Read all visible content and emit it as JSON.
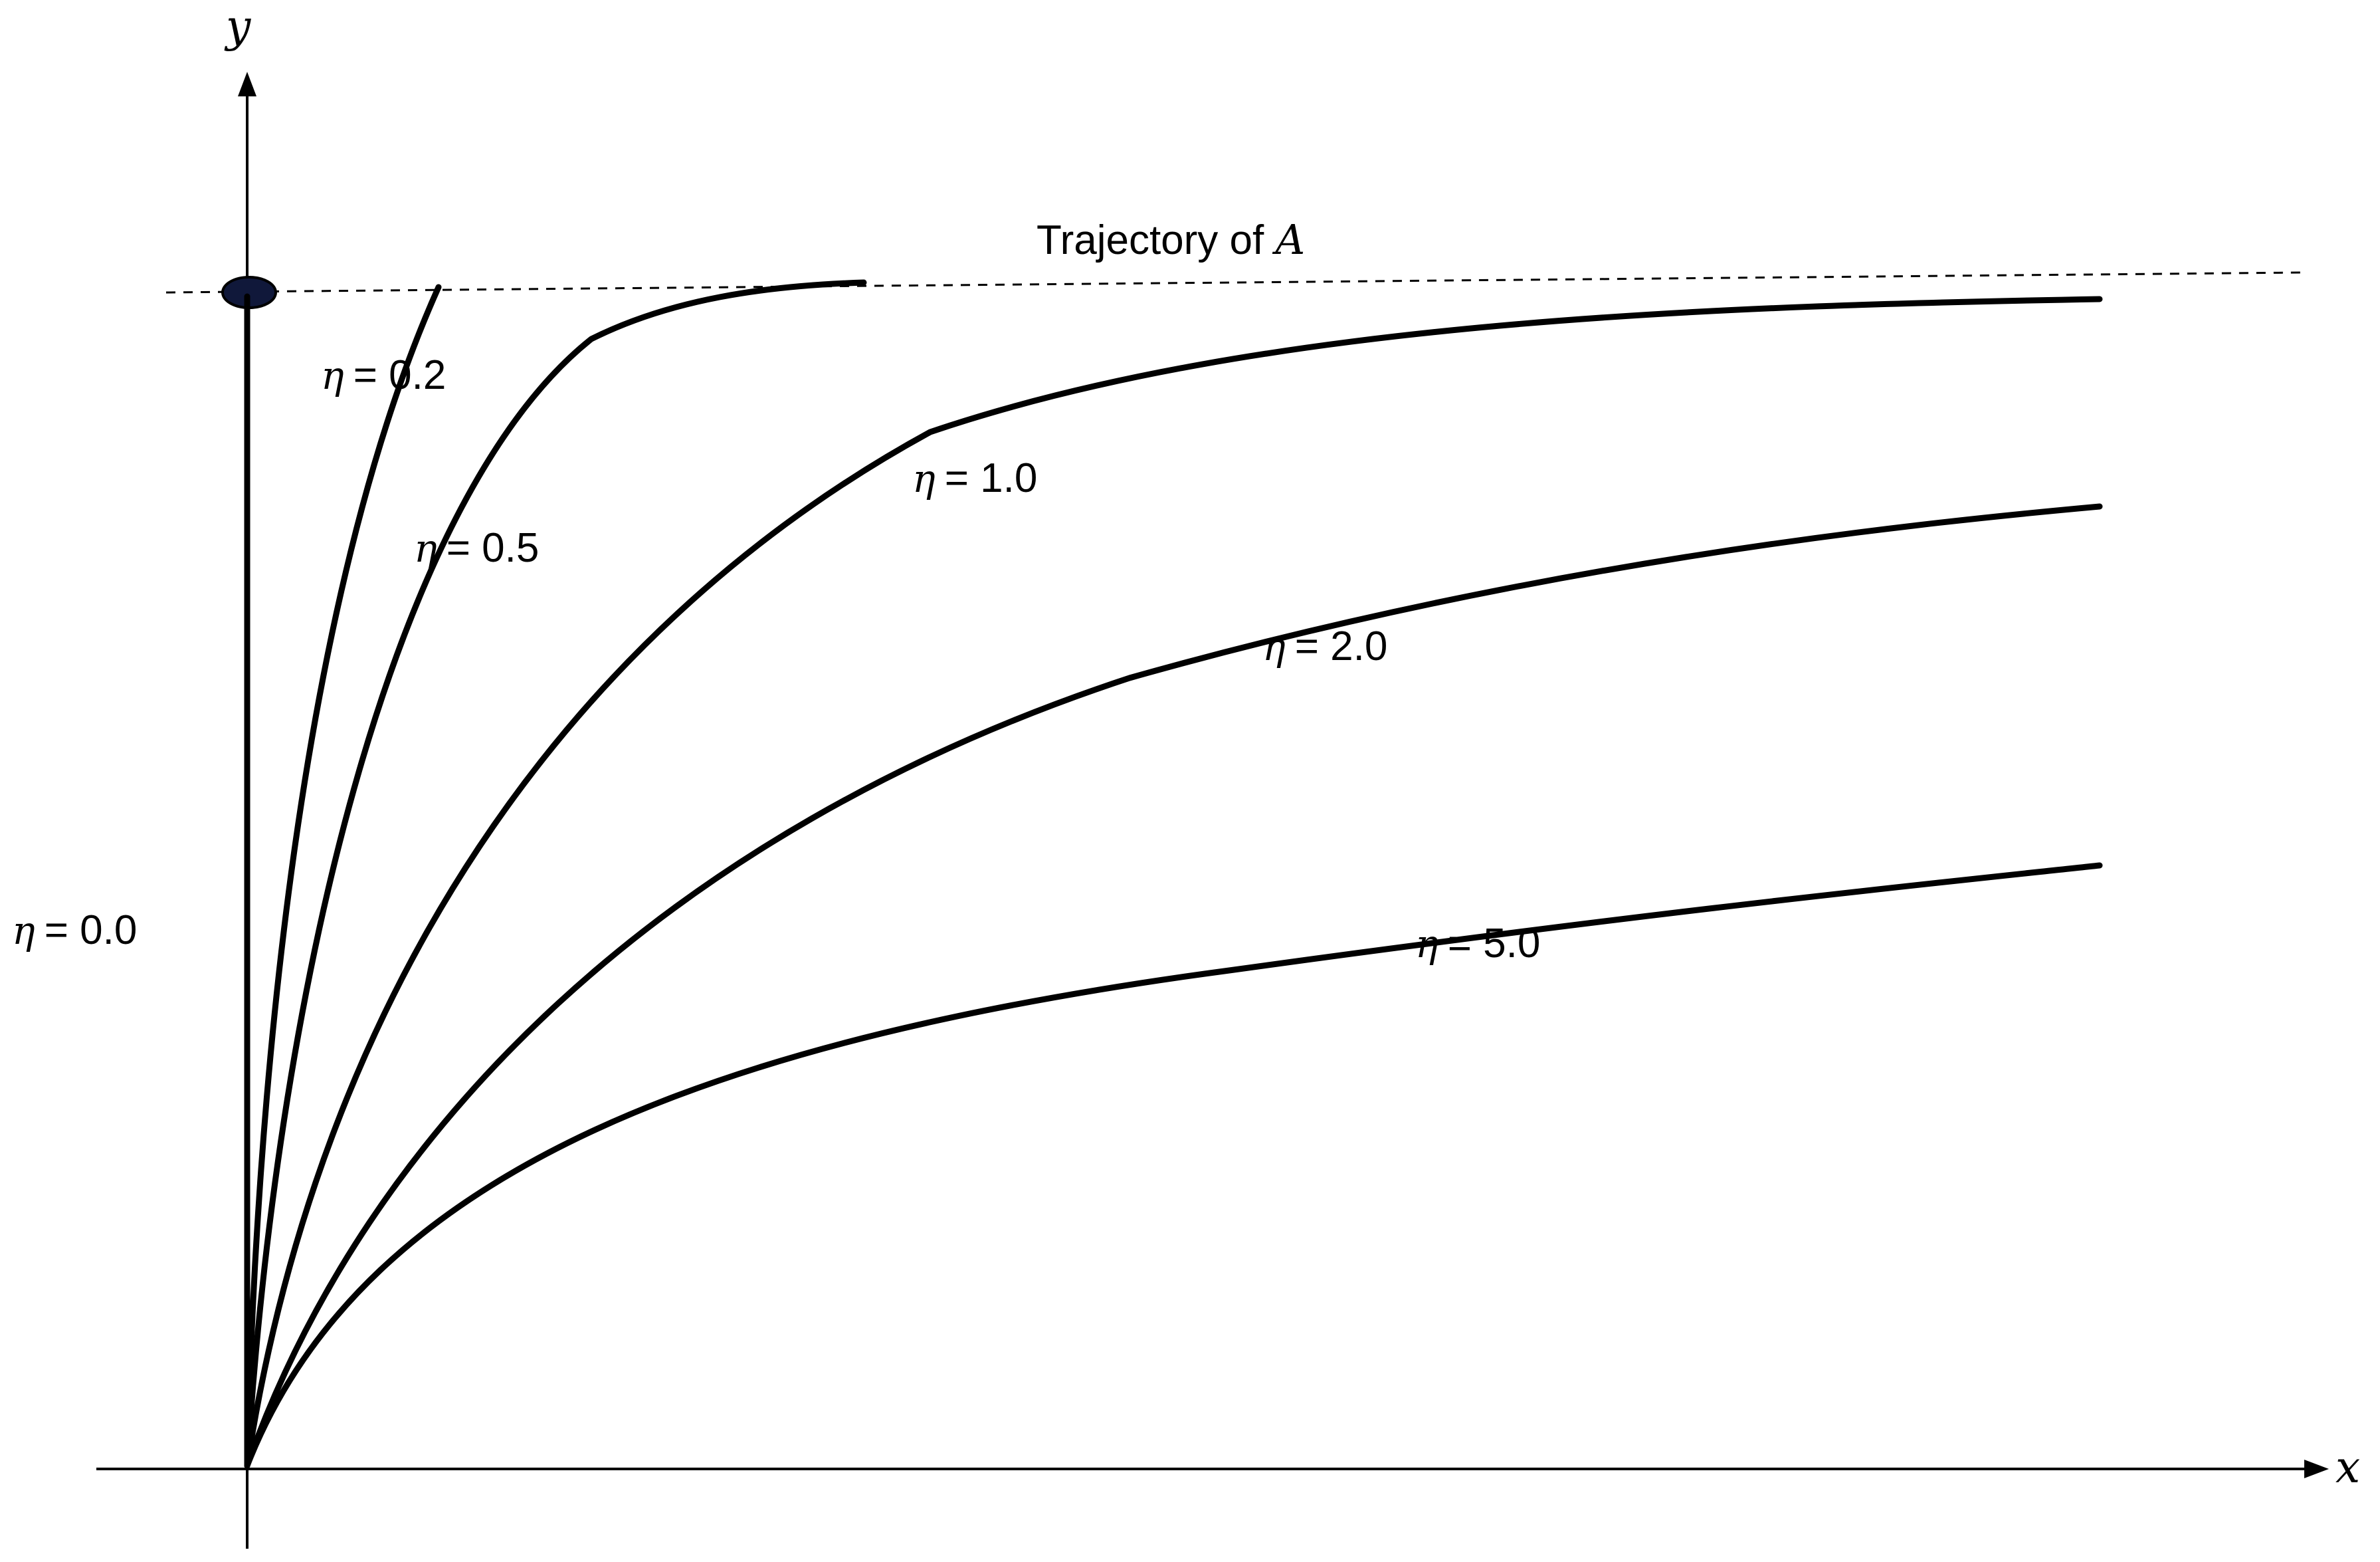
{
  "axes": {
    "x_label": "x",
    "y_label": "y"
  },
  "trajectory_label": {
    "prefix": "Trajectory of ",
    "symbol": "A"
  },
  "parameter_symbol": "η",
  "curves": [
    {
      "eta": "0.0",
      "value_text": "= 0.0"
    },
    {
      "eta": "0.2",
      "value_text": "= 0.2"
    },
    {
      "eta": "0.5",
      "value_text": "= 0.5"
    },
    {
      "eta": "1.0",
      "value_text": "= 1.0"
    },
    {
      "eta": "2.0",
      "value_text": "= 2.0"
    },
    {
      "eta": "5.0",
      "value_text": "= 5.0"
    }
  ],
  "colors": {
    "stroke": "#000000",
    "background": "#ffffff"
  }
}
